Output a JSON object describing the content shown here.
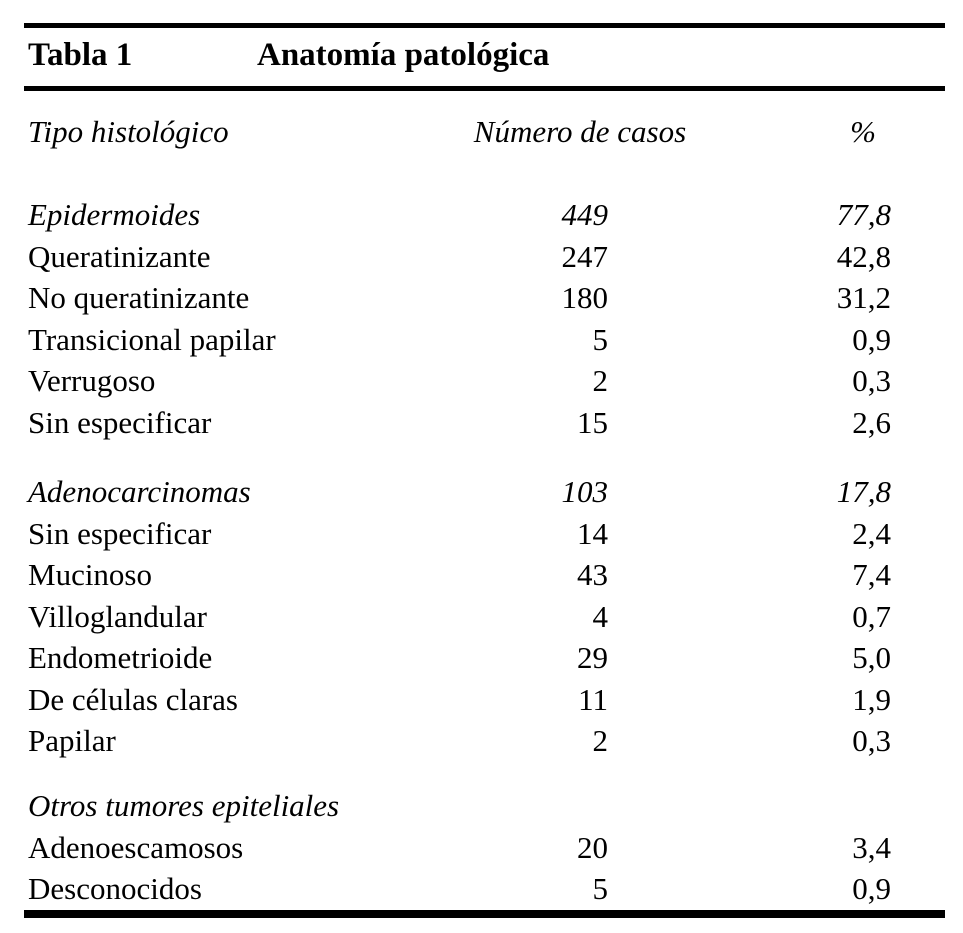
{
  "page": {
    "background_color": "#ffffff",
    "text_color": "#000000",
    "rule_color": "#000000"
  },
  "title": {
    "label": "Tabla 1",
    "heading": "Anatomía patológica"
  },
  "columns": {
    "histologic_type": "Tipo histológico",
    "num_cases": "Número de casos",
    "percent": "%"
  },
  "sections": [
    {
      "header": {
        "label": "Epidermoides",
        "cases": "449",
        "pct": "77,8"
      },
      "rows": [
        {
          "label": "Queratinizante",
          "cases": "247",
          "pct": "42,8"
        },
        {
          "label": "No queratinizante",
          "cases": "180",
          "pct": "31,2"
        },
        {
          "label": "Transicional papilar",
          "cases": "5",
          "pct": "0,9"
        },
        {
          "label": "Verrugoso",
          "cases": "2",
          "pct": "0,3"
        },
        {
          "label": "Sin especificar",
          "cases": "15",
          "pct": "2,6"
        }
      ]
    },
    {
      "header": {
        "label": "Adenocarcinomas",
        "cases": "103",
        "pct": "17,8"
      },
      "rows": [
        {
          "label": "Sin especificar",
          "cases": "14",
          "pct": "2,4"
        },
        {
          "label": "Mucinoso",
          "cases": "43",
          "pct": "7,4"
        },
        {
          "label": "Villoglandular",
          "cases": "4",
          "pct": "0,7"
        },
        {
          "label": "Endometrioide",
          "cases": "29",
          "pct": "5,0"
        },
        {
          "label": "De células claras",
          "cases": "11",
          "pct": "1,9"
        },
        {
          "label": "Papilar",
          "cases": "2",
          "pct": "0,3"
        }
      ]
    },
    {
      "header": {
        "label": "Otros tumores epiteliales",
        "cases": "",
        "pct": ""
      },
      "rows": [
        {
          "label": "Adenoescamosos",
          "cases": "20",
          "pct": "3,4"
        },
        {
          "label": "Desconocidos",
          "cases": "5",
          "pct": "0,9"
        }
      ]
    }
  ]
}
